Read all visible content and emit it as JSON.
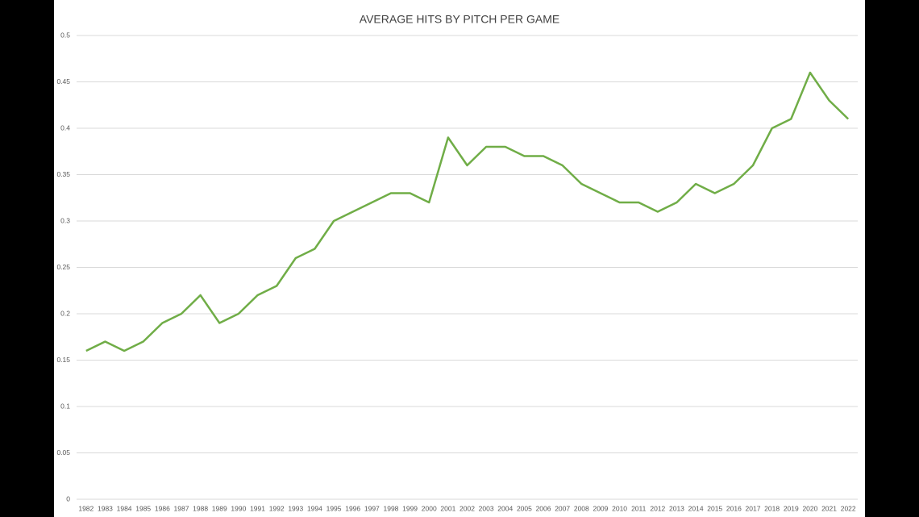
{
  "chart_data": {
    "type": "line",
    "title": "AVERAGE HITS BY PITCH PER GAME",
    "categories": [
      "1982",
      "1983",
      "1984",
      "1985",
      "1986",
      "1987",
      "1988",
      "1989",
      "1990",
      "1991",
      "1992",
      "1993",
      "1994",
      "1995",
      "1996",
      "1997",
      "1998",
      "1999",
      "2000",
      "2001",
      "2002",
      "2003",
      "2004",
      "2005",
      "2006",
      "2007",
      "2008",
      "2009",
      "2010",
      "2011",
      "2012",
      "2013",
      "2014",
      "2015",
      "2016",
      "2017",
      "2018",
      "2019",
      "2020",
      "2021",
      "2022"
    ],
    "values": [
      0.16,
      0.17,
      0.16,
      0.17,
      0.19,
      0.2,
      0.22,
      0.19,
      0.2,
      0.22,
      0.23,
      0.26,
      0.27,
      0.3,
      0.31,
      0.32,
      0.33,
      0.33,
      0.32,
      0.39,
      0.36,
      0.38,
      0.38,
      0.37,
      0.37,
      0.36,
      0.34,
      0.33,
      0.32,
      0.32,
      0.31,
      0.32,
      0.34,
      0.33,
      0.34,
      0.36,
      0.4,
      0.41,
      0.46,
      0.43,
      0.41
    ],
    "color": "#70ad47",
    "ylim": [
      0,
      0.5
    ],
    "yticks": [
      0,
      0.05,
      0.1,
      0.15,
      0.2,
      0.25,
      0.3,
      0.35,
      0.4,
      0.45,
      0.5
    ],
    "grid": true
  }
}
